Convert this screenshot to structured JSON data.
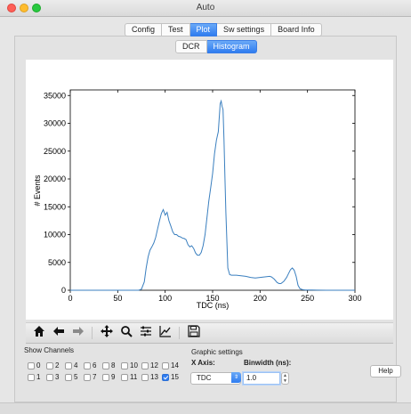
{
  "window": {
    "title": "Auto"
  },
  "main_tabs": [
    {
      "label": "Config",
      "active": false
    },
    {
      "label": "Test",
      "active": false
    },
    {
      "label": "Plot",
      "active": true
    },
    {
      "label": "Sw settings",
      "active": false
    },
    {
      "label": "Board Info",
      "active": false
    }
  ],
  "sub_tabs": [
    {
      "label": "DCR",
      "active": false
    },
    {
      "label": "Histogram",
      "active": true
    }
  ],
  "toolbar_icons": [
    "home-icon",
    "back-arrow-icon",
    "forward-arrow-icon",
    "pan-icon",
    "zoom-icon",
    "subplots-config-icon",
    "edit-axis-icon",
    "save-icon"
  ],
  "channels": {
    "label": "Show Channels",
    "items": [
      {
        "label": "0",
        "checked": false
      },
      {
        "label": "2",
        "checked": false
      },
      {
        "label": "4",
        "checked": false
      },
      {
        "label": "6",
        "checked": false
      },
      {
        "label": "8",
        "checked": false
      },
      {
        "label": "10",
        "checked": false
      },
      {
        "label": "12",
        "checked": false
      },
      {
        "label": "14",
        "checked": false
      },
      {
        "label": "1",
        "checked": false
      },
      {
        "label": "3",
        "checked": false
      },
      {
        "label": "5",
        "checked": false
      },
      {
        "label": "7",
        "checked": false
      },
      {
        "label": "9",
        "checked": false
      },
      {
        "label": "11",
        "checked": false
      },
      {
        "label": "13",
        "checked": false
      },
      {
        "label": "15",
        "checked": true
      }
    ]
  },
  "graphic_settings": {
    "label": "Graphic settings",
    "x_axis_label": "X Axis:",
    "x_axis_value": "TDC",
    "binwidth_label": "Binwidth (ns):",
    "binwidth_value": "1.0"
  },
  "help_label": "Help",
  "chart_data": {
    "type": "line",
    "title": "",
    "xlabel": "TDC (ns)",
    "ylabel": "# Events",
    "xlim": [
      0,
      300
    ],
    "ylim": [
      0,
      36000
    ],
    "xticks": [
      "0",
      "50",
      "100",
      "150",
      "200",
      "250",
      "300"
    ],
    "yticks": [
      "0",
      "5000",
      "10000",
      "15000",
      "20000",
      "25000",
      "30000",
      "35000"
    ],
    "line_color": "#3a7fbf",
    "series": [
      {
        "x": [
          0,
          72,
          75,
          78,
          80,
          82,
          84,
          86,
          88,
          90,
          92,
          94,
          96,
          98,
          100,
          102,
          104,
          106,
          108,
          110,
          112,
          114,
          116,
          118,
          120,
          122,
          124,
          126,
          128,
          130,
          132,
          134,
          136,
          138,
          140,
          142,
          144,
          146,
          148,
          150,
          152,
          154,
          156,
          158,
          159,
          160,
          161,
          162,
          163,
          164,
          166,
          168,
          170,
          175,
          180,
          185,
          190,
          195,
          200,
          205,
          210,
          212,
          215,
          218,
          220,
          222,
          225,
          228,
          230,
          232,
          234,
          236,
          238,
          240,
          242,
          244,
          246,
          248,
          250,
          255,
          260,
          270,
          300
        ],
        "y": [
          0,
          0,
          200,
          1500,
          4000,
          6000,
          7200,
          7800,
          8500,
          9500,
          11000,
          12500,
          13800,
          14500,
          13500,
          14000,
          12500,
          11500,
          10500,
          10000,
          10000,
          9700,
          9600,
          9400,
          9300,
          9100,
          8200,
          7800,
          8000,
          7500,
          6700,
          6300,
          6300,
          6800,
          8000,
          10000,
          13000,
          16000,
          18500,
          21000,
          24500,
          27000,
          28500,
          33500,
          34000,
          33000,
          32500,
          27000,
          20000,
          14000,
          4000,
          2800,
          2700,
          2700,
          2600,
          2500,
          2300,
          2200,
          2300,
          2400,
          2500,
          2400,
          2000,
          1400,
          1200,
          1200,
          1600,
          2300,
          3000,
          3700,
          4000,
          3600,
          2500,
          900,
          300,
          150,
          80,
          50,
          40,
          30,
          10,
          0,
          0
        ]
      }
    ]
  }
}
